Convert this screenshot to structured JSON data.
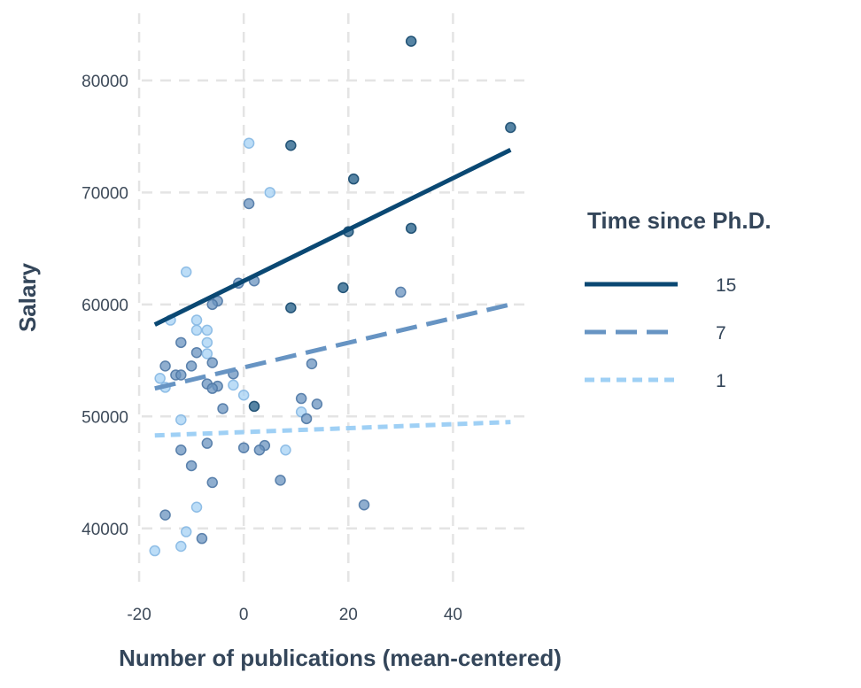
{
  "chart_data": {
    "type": "scatter",
    "xlabel": "Number of publications (mean-centered)",
    "ylabel": "Salary",
    "xlim": [
      -19.5,
      55
    ],
    "ylim": [
      35000,
      86000
    ],
    "x_ticks": [
      -20,
      0,
      20,
      40
    ],
    "x_tick_labels": [
      "-20",
      "0",
      "20",
      "40"
    ],
    "y_ticks": [
      40000,
      50000,
      60000,
      70000,
      80000
    ],
    "y_tick_labels": [
      "40000",
      "50000",
      "60000",
      "70000",
      "80000"
    ],
    "grid": true,
    "legend": {
      "title": "Time since Ph.D.",
      "placement": "right",
      "entries": [
        {
          "label": "15",
          "color": "#0a4873",
          "dash": "solid"
        },
        {
          "label": "7",
          "color": "#6794c3",
          "dash": "dashed"
        },
        {
          "label": "1",
          "color": "#9fd0f5",
          "dash": "dotted"
        }
      ]
    },
    "lines": [
      {
        "name": "15",
        "color": "#0a4873",
        "dash": "solid",
        "x": [
          -17,
          51
        ],
        "y": [
          58200,
          73800
        ]
      },
      {
        "name": "7",
        "color": "#6794c3",
        "dash": "dashed",
        "x": [
          -17,
          51
        ],
        "y": [
          52500,
          60000
        ]
      },
      {
        "name": "1",
        "color": "#9fd0f5",
        "dash": "dotted",
        "x": [
          -17,
          51
        ],
        "y": [
          48300,
          49500
        ]
      }
    ],
    "points": [
      {
        "x": 32,
        "y": 83500,
        "c": "dark"
      },
      {
        "x": 51,
        "y": 75800,
        "c": "dark"
      },
      {
        "x": 9,
        "y": 74200,
        "c": "dark"
      },
      {
        "x": 21,
        "y": 71200,
        "c": "dark"
      },
      {
        "x": 20,
        "y": 66500,
        "c": "dark"
      },
      {
        "x": 32,
        "y": 66800,
        "c": "dark"
      },
      {
        "x": 19,
        "y": 61500,
        "c": "dark"
      },
      {
        "x": 9,
        "y": 59700,
        "c": "dark"
      },
      {
        "x": 1,
        "y": 74400,
        "c": "light"
      },
      {
        "x": 5,
        "y": 70000,
        "c": "light"
      },
      {
        "x": 1,
        "y": 69000,
        "c": "mid"
      },
      {
        "x": -11,
        "y": 62900,
        "c": "light"
      },
      {
        "x": 2,
        "y": 62100,
        "c": "mid"
      },
      {
        "x": -1,
        "y": 61900,
        "c": "mid"
      },
      {
        "x": 30,
        "y": 61100,
        "c": "mid"
      },
      {
        "x": -5,
        "y": 60300,
        "c": "mid"
      },
      {
        "x": -6,
        "y": 60000,
        "c": "mid"
      },
      {
        "x": -14,
        "y": 58600,
        "c": "light"
      },
      {
        "x": -9,
        "y": 58600,
        "c": "light"
      },
      {
        "x": -9,
        "y": 57700,
        "c": "light"
      },
      {
        "x": -7,
        "y": 57700,
        "c": "light"
      },
      {
        "x": -12,
        "y": 56600,
        "c": "mid"
      },
      {
        "x": -7,
        "y": 56600,
        "c": "light"
      },
      {
        "x": -9,
        "y": 55700,
        "c": "mid"
      },
      {
        "x": -7,
        "y": 55600,
        "c": "light"
      },
      {
        "x": -6,
        "y": 54800,
        "c": "mid"
      },
      {
        "x": -15,
        "y": 54500,
        "c": "mid"
      },
      {
        "x": -10,
        "y": 54500,
        "c": "mid"
      },
      {
        "x": 13,
        "y": 54700,
        "c": "mid"
      },
      {
        "x": -13,
        "y": 53700,
        "c": "mid"
      },
      {
        "x": -12,
        "y": 53700,
        "c": "mid"
      },
      {
        "x": -2,
        "y": 53800,
        "c": "mid"
      },
      {
        "x": -16,
        "y": 53400,
        "c": "light"
      },
      {
        "x": -7,
        "y": 52900,
        "c": "mid"
      },
      {
        "x": -2,
        "y": 52800,
        "c": "light"
      },
      {
        "x": -5,
        "y": 52700,
        "c": "mid"
      },
      {
        "x": -6,
        "y": 52500,
        "c": "mid"
      },
      {
        "x": -15,
        "y": 52600,
        "c": "light"
      },
      {
        "x": 0,
        "y": 51900,
        "c": "light"
      },
      {
        "x": 11,
        "y": 51600,
        "c": "mid"
      },
      {
        "x": 14,
        "y": 51100,
        "c": "mid"
      },
      {
        "x": 2,
        "y": 50900,
        "c": "dark"
      },
      {
        "x": -4,
        "y": 50700,
        "c": "mid"
      },
      {
        "x": 11,
        "y": 50400,
        "c": "light"
      },
      {
        "x": 12,
        "y": 49800,
        "c": "mid"
      },
      {
        "x": -12,
        "y": 49700,
        "c": "light"
      },
      {
        "x": -7,
        "y": 47600,
        "c": "mid"
      },
      {
        "x": 0,
        "y": 47200,
        "c": "mid"
      },
      {
        "x": 4,
        "y": 47400,
        "c": "mid"
      },
      {
        "x": 3,
        "y": 47000,
        "c": "mid"
      },
      {
        "x": 8,
        "y": 47000,
        "c": "light"
      },
      {
        "x": -12,
        "y": 47000,
        "c": "mid"
      },
      {
        "x": -10,
        "y": 45600,
        "c": "mid"
      },
      {
        "x": 7,
        "y": 44300,
        "c": "mid"
      },
      {
        "x": -6,
        "y": 44100,
        "c": "mid"
      },
      {
        "x": 23,
        "y": 42100,
        "c": "mid"
      },
      {
        "x": -9,
        "y": 41900,
        "c": "light"
      },
      {
        "x": -15,
        "y": 41200,
        "c": "mid"
      },
      {
        "x": -11,
        "y": 39700,
        "c": "light"
      },
      {
        "x": -8,
        "y": 39100,
        "c": "mid"
      },
      {
        "x": -12,
        "y": 38400,
        "c": "light"
      },
      {
        "x": -17,
        "y": 38000,
        "c": "light"
      }
    ],
    "point_colors": {
      "dark": {
        "fill": "#1e5b86",
        "stroke": "#15486d",
        "opacity": 0.75
      },
      "mid": {
        "fill": "#6a93bf",
        "stroke": "#4f78a5",
        "opacity": 0.75
      },
      "light": {
        "fill": "#a6d1f4",
        "stroke": "#86b8e3",
        "opacity": 0.75
      }
    },
    "grid_color": "#e4e4e4"
  }
}
